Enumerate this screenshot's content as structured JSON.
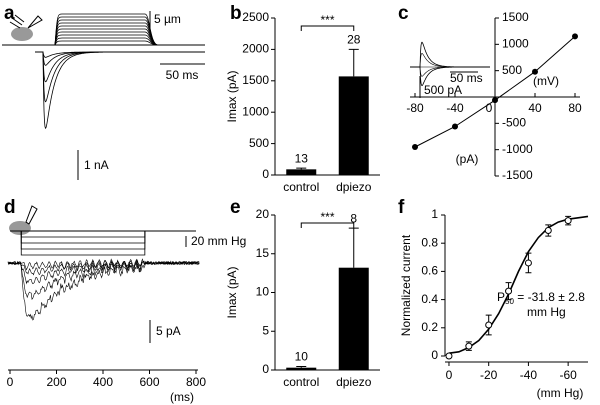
{
  "chart_data": [
    {
      "type": "trace",
      "panel": "a",
      "scale_labels": [
        "5 µm",
        "50 ms",
        "1 nA"
      ]
    },
    {
      "type": "bar",
      "panel": "b",
      "categories": [
        "control",
        "dpiezo"
      ],
      "values": [
        90,
        1570
      ],
      "errors": [
        20,
        430
      ],
      "n_labels": [
        "13",
        "28"
      ],
      "significance": "***",
      "ylabel": "Imax (pA)",
      "ylim": [
        0,
        2500
      ],
      "yticks": [
        0,
        500,
        1000,
        1500,
        2000,
        2500
      ],
      "color": "#000000"
    },
    {
      "type": "line",
      "panel": "c",
      "x": [
        -80,
        -40,
        0,
        40,
        80
      ],
      "values": [
        -950,
        -560,
        -60,
        480,
        1150
      ],
      "xlim": [
        -85,
        85
      ],
      "xticks": [
        -80,
        -40,
        0,
        40,
        80
      ],
      "ylim": [
        -1500,
        1500
      ],
      "yticks": [
        -1500,
        -1000,
        -500,
        500,
        1000,
        1500
      ],
      "xlabel": "(mV)",
      "ylabel": "(pA)",
      "inset_labels": [
        "50 ms",
        "500 pA"
      ],
      "color": "#000000"
    },
    {
      "type": "trace",
      "panel": "d",
      "scale_labels": [
        "20 mm Hg",
        "5 pA"
      ],
      "xlim": [
        0,
        800
      ],
      "xticks": [
        0,
        200,
        400,
        600,
        800
      ],
      "xlabel": "(ms)"
    },
    {
      "type": "bar",
      "panel": "e",
      "categories": [
        "control",
        "dpiezo"
      ],
      "values": [
        0.3,
        13.2
      ],
      "errors": [
        0.15,
        5.1
      ],
      "n_labels": [
        "10",
        "8"
      ],
      "significance": "***",
      "ylabel": "Imax (pA)",
      "ylim": [
        0,
        20
      ],
      "yticks": [
        0,
        5,
        10,
        15,
        20
      ],
      "color": "#000000"
    },
    {
      "type": "scatter",
      "panel": "f",
      "x": [
        0,
        -10,
        -20,
        -30,
        -40,
        -50,
        -60
      ],
      "values": [
        0,
        0.07,
        0.22,
        0.46,
        0.66,
        0.89,
        0.96
      ],
      "errors": [
        0,
        0.03,
        0.07,
        0.06,
        0.07,
        0.04,
        0.03
      ],
      "curve": {
        "x": [
          0,
          -5,
          -10,
          -15,
          -20,
          -25,
          -30,
          -35,
          -40,
          -45,
          -50,
          -55,
          -60,
          -65,
          -70
        ],
        "values": [
          0.02,
          0.03,
          0.06,
          0.11,
          0.19,
          0.3,
          0.44,
          0.6,
          0.74,
          0.84,
          0.91,
          0.95,
          0.97,
          0.98,
          0.99
        ]
      },
      "xlim": [
        2,
        -70
      ],
      "xticks": [
        0,
        -20,
        -40,
        -60
      ],
      "ylim": [
        0,
        1
      ],
      "yticks": [
        0,
        0.2,
        0.4,
        0.6,
        0.8,
        1
      ],
      "xlabel": "(mm Hg)",
      "ylabel": "Normalized current",
      "annotation": [
        "P",
        "50",
        " = -31.8 ± 2.8",
        "mm Hg"
      ],
      "color": "#000000"
    }
  ]
}
